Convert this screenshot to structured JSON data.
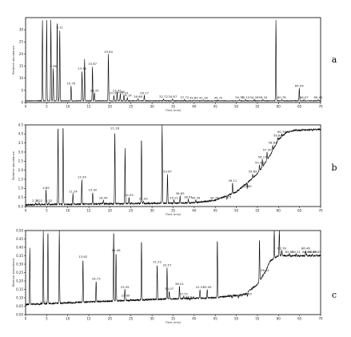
{
  "figure": {
    "title": ""
  },
  "chart_data": [
    {
      "type": "line",
      "panel": "a",
      "xlabel": "Time (min)",
      "ylabel": "Relative abundance",
      "xlim": [
        0,
        70
      ],
      "ylim": [
        0,
        35
      ],
      "xticks": [
        "0",
        "5",
        "10",
        "15",
        "20",
        "25",
        "30",
        "35",
        "40",
        "45",
        "50",
        "55",
        "60",
        "65",
        "70"
      ],
      "yticks": [
        "0",
        "5",
        "10",
        "15",
        "20",
        "25",
        "30"
      ],
      "peaks": [
        {
          "x": 4.0,
          "y": 34,
          "label": ""
        },
        {
          "x": 5.0,
          "y": 34,
          "label": ""
        },
        {
          "x": 6.0,
          "y": 34,
          "label": ""
        },
        {
          "x": 7.5,
          "y": 34,
          "label": ""
        },
        {
          "x": 8.11,
          "y": 30,
          "label": "8.11"
        },
        {
          "x": 6.56,
          "y": 14,
          "label": "6.56"
        },
        {
          "x": 10.79,
          "y": 7,
          "label": "10.79"
        },
        {
          "x": 13.39,
          "y": 13,
          "label": "13.39"
        },
        {
          "x": 14.0,
          "y": 18,
          "label": ""
        },
        {
          "x": 15.87,
          "y": 15,
          "label": "15.87"
        },
        {
          "x": 16.35,
          "y": 4,
          "label": "16.35"
        },
        {
          "x": 19.64,
          "y": 20,
          "label": "19.64"
        },
        {
          "x": 20.95,
          "y": 3,
          "label": "20.95"
        },
        {
          "x": 21.71,
          "y": 4,
          "label": "21.71"
        },
        {
          "x": 22.46,
          "y": 3.5,
          "label": "22.46"
        },
        {
          "x": 23.33,
          "y": 3,
          "label": "23.33"
        },
        {
          "x": 24.14,
          "y": 2,
          "label": "24.14"
        },
        {
          "x": 26.66,
          "y": 1.5,
          "label": "26.66"
        },
        {
          "x": 28.17,
          "y": 3,
          "label": "28.17"
        },
        {
          "x": 32.72,
          "y": 1.5,
          "label": "32.72"
        },
        {
          "x": 34.87,
          "y": 1.5,
          "label": "34.87"
        },
        {
          "x": 37.72,
          "y": 1.2,
          "label": "37.72"
        },
        {
          "x": 39.89,
          "y": 1.0,
          "label": "39.89"
        },
        {
          "x": 42.18,
          "y": 1.0,
          "label": "42.18"
        },
        {
          "x": 45.72,
          "y": 1.0,
          "label": "45.72"
        },
        {
          "x": 50.77,
          "y": 1.2,
          "label": "50.77"
        },
        {
          "x": 52.15,
          "y": 1.2,
          "label": "52.15"
        },
        {
          "x": 54.26,
          "y": 1.2,
          "label": "54.26"
        },
        {
          "x": 56.34,
          "y": 1.2,
          "label": "56.34"
        },
        {
          "x": 59.4,
          "y": 34,
          "label": ""
        },
        {
          "x": 60.76,
          "y": 1.2,
          "label": "60.76"
        },
        {
          "x": 64.94,
          "y": 6,
          "label": "64.94"
        },
        {
          "x": 66.07,
          "y": 1.2,
          "label": "66.07"
        },
        {
          "x": 69.42,
          "y": 1.2,
          "label": "69.42"
        }
      ]
    },
    {
      "type": "line",
      "panel": "b",
      "xlabel": "Time (min)",
      "ylabel": "Relative abundance",
      "xlim": [
        0,
        70
      ],
      "ylim": [
        0,
        4.5
      ],
      "xticks": [
        "0",
        "5",
        "10",
        "15",
        "20",
        "25",
        "30",
        "35",
        "40",
        "45",
        "50",
        "55",
        "60",
        "65",
        "70"
      ],
      "yticks": [
        "0.0",
        "0.5",
        "1.0",
        "1.5",
        "2.0",
        "2.5",
        "3.0",
        "3.5",
        "4.0",
        "4.5"
      ],
      "peaks": [
        {
          "x": 2.35,
          "y": 0.2,
          "label": "2.35"
        },
        {
          "x": 3.22,
          "y": 0.2,
          "label": "3.22"
        },
        {
          "x": 4.85,
          "y": 0.9,
          "label": "4.85"
        },
        {
          "x": 5.52,
          "y": 0.2,
          "label": "5.52"
        },
        {
          "x": 7.7,
          "y": 4.5,
          "label": ""
        },
        {
          "x": 8.9,
          "y": 4.5,
          "label": ""
        },
        {
          "x": 11.24,
          "y": 0.7,
          "label": "11.24"
        },
        {
          "x": 13.34,
          "y": 1.5,
          "label": "13.34"
        },
        {
          "x": 15.92,
          "y": 0.8,
          "label": "15.92"
        },
        {
          "x": 18.44,
          "y": 0.35,
          "label": "18.44"
        },
        {
          "x": 21.18,
          "y": 4.2,
          "label": "21.18"
        },
        {
          "x": 23.6,
          "y": 3.2,
          "label": ""
        },
        {
          "x": 24.55,
          "y": 0.5,
          "label": "24.55"
        },
        {
          "x": 27.5,
          "y": 3.8,
          "label": ""
        },
        {
          "x": 27.93,
          "y": 0.3,
          "label": "27.93"
        },
        {
          "x": 32.4,
          "y": 4.5,
          "label": ""
        },
        {
          "x": 33.67,
          "y": 1.8,
          "label": "33.67"
        },
        {
          "x": 35.21,
          "y": 0.35,
          "label": "35.21"
        },
        {
          "x": 36.65,
          "y": 0.6,
          "label": "36.65"
        },
        {
          "x": 38.61,
          "y": 0.4,
          "label": "38.61"
        },
        {
          "x": 40.39,
          "y": 0.35,
          "label": "40.39"
        },
        {
          "x": 44.79,
          "y": 0.35,
          "label": "44.79"
        },
        {
          "x": 47.79,
          "y": 0.4,
          "label": "47.79"
        },
        {
          "x": 49.11,
          "y": 1.3,
          "label": "49.11"
        },
        {
          "x": 52.6,
          "y": 1.0,
          "label": "52.60"
        },
        {
          "x": 53.89,
          "y": 1.8,
          "label": "53.89"
        },
        {
          "x": 55.48,
          "y": 2.3,
          "label": "55.48"
        },
        {
          "x": 56.17,
          "y": 2.6,
          "label": "56.17"
        },
        {
          "x": 57.3,
          "y": 3.0,
          "label": "57.30"
        },
        {
          "x": 58.63,
          "y": 3.4,
          "label": "58.63"
        },
        {
          "x": 59.84,
          "y": 3.8,
          "label": "59.84"
        },
        {
          "x": 60.78,
          "y": 4.0,
          "label": "60.78"
        }
      ],
      "baseline": [
        [
          0,
          0.1
        ],
        [
          40,
          0.2
        ],
        [
          45,
          0.35
        ],
        [
          50,
          0.8
        ],
        [
          55,
          1.8
        ],
        [
          58,
          2.8
        ],
        [
          60,
          3.7
        ],
        [
          62,
          4.1
        ],
        [
          64,
          4.2
        ],
        [
          70,
          4.25
        ]
      ]
    },
    {
      "type": "line",
      "panel": "c",
      "xlabel": "Time (min)",
      "ylabel": "Relative abundance",
      "xlim": [
        0,
        70
      ],
      "ylim": [
        0,
        0.5
      ],
      "xticks": [
        "0",
        "5",
        "10",
        "15",
        "20",
        "25",
        "30",
        "35",
        "40",
        "45",
        "50",
        "55",
        "60",
        "65",
        "70"
      ],
      "yticks": [
        "0.00",
        "0.05",
        "0.10",
        "0.15",
        "0.20",
        "0.25",
        "0.30",
        "0.35",
        "0.40",
        "0.45",
        "0.50"
      ],
      "peaks": [
        {
          "x": 1.0,
          "y": 0.4,
          "label": ""
        },
        {
          "x": 4.2,
          "y": 0.5,
          "label": ""
        },
        {
          "x": 4.25,
          "y": 0.06,
          "label": "4.25"
        },
        {
          "x": 5.3,
          "y": 0.5,
          "label": ""
        },
        {
          "x": 8.0,
          "y": 0.5,
          "label": ""
        },
        {
          "x": 13.62,
          "y": 0.33,
          "label": "13.62"
        },
        {
          "x": 16.73,
          "y": 0.2,
          "label": "16.73"
        },
        {
          "x": 20.9,
          "y": 0.5,
          "label": ""
        },
        {
          "x": 21.46,
          "y": 0.37,
          "label": "21.46"
        },
        {
          "x": 23.55,
          "y": 0.15,
          "label": "23.55"
        },
        {
          "x": 23.69,
          "y": 0.1,
          "label": "23.69"
        },
        {
          "x": 27.5,
          "y": 0.45,
          "label": ""
        },
        {
          "x": 31.22,
          "y": 0.3,
          "label": "31.22"
        },
        {
          "x": 33.57,
          "y": 0.28,
          "label": "33.57"
        },
        {
          "x": 34.07,
          "y": 0.14,
          "label": "34.07"
        },
        {
          "x": 36.51,
          "y": 0.17,
          "label": "36.51"
        },
        {
          "x": 37.51,
          "y": 0.11,
          "label": "37.51"
        },
        {
          "x": 38.97,
          "y": 0.09,
          "label": "38.97"
        },
        {
          "x": 41.37,
          "y": 0.15,
          "label": "41.37"
        },
        {
          "x": 43.09,
          "y": 0.15,
          "label": "43.09"
        },
        {
          "x": 45.5,
          "y": 0.45,
          "label": ""
        },
        {
          "x": 48.97,
          "y": 0.1,
          "label": "48.97"
        },
        {
          "x": 50.5,
          "y": 0.1,
          "label": "50.50"
        },
        {
          "x": 52.63,
          "y": 0.11,
          "label": "52.63"
        },
        {
          "x": 55.5,
          "y": 0.45,
          "label": ""
        },
        {
          "x": 56.81,
          "y": 0.25,
          "label": "56.81"
        },
        {
          "x": 59.0,
          "y": 0.5,
          "label": ""
        },
        {
          "x": 60.2,
          "y": 0.5,
          "label": ""
        },
        {
          "x": 60.78,
          "y": 0.38,
          "label": "60.78"
        },
        {
          "x": 62.63,
          "y": 0.36,
          "label": "62.63"
        },
        {
          "x": 64.21,
          "y": 0.36,
          "label": "64.21"
        },
        {
          "x": 66.46,
          "y": 0.38,
          "label": "66.46"
        },
        {
          "x": 66.69,
          "y": 0.36,
          "label": "66.69"
        },
        {
          "x": 68.09,
          "y": 0.36,
          "label": "68.09"
        },
        {
          "x": 69.09,
          "y": 0.36,
          "label": "69.09"
        }
      ],
      "baseline": [
        [
          0,
          0.06
        ],
        [
          10,
          0.07
        ],
        [
          20,
          0.08
        ],
        [
          30,
          0.09
        ],
        [
          45,
          0.1
        ],
        [
          52,
          0.12
        ],
        [
          55,
          0.18
        ],
        [
          57,
          0.26
        ],
        [
          58,
          0.32
        ],
        [
          60,
          0.35
        ],
        [
          70,
          0.35
        ]
      ]
    }
  ]
}
